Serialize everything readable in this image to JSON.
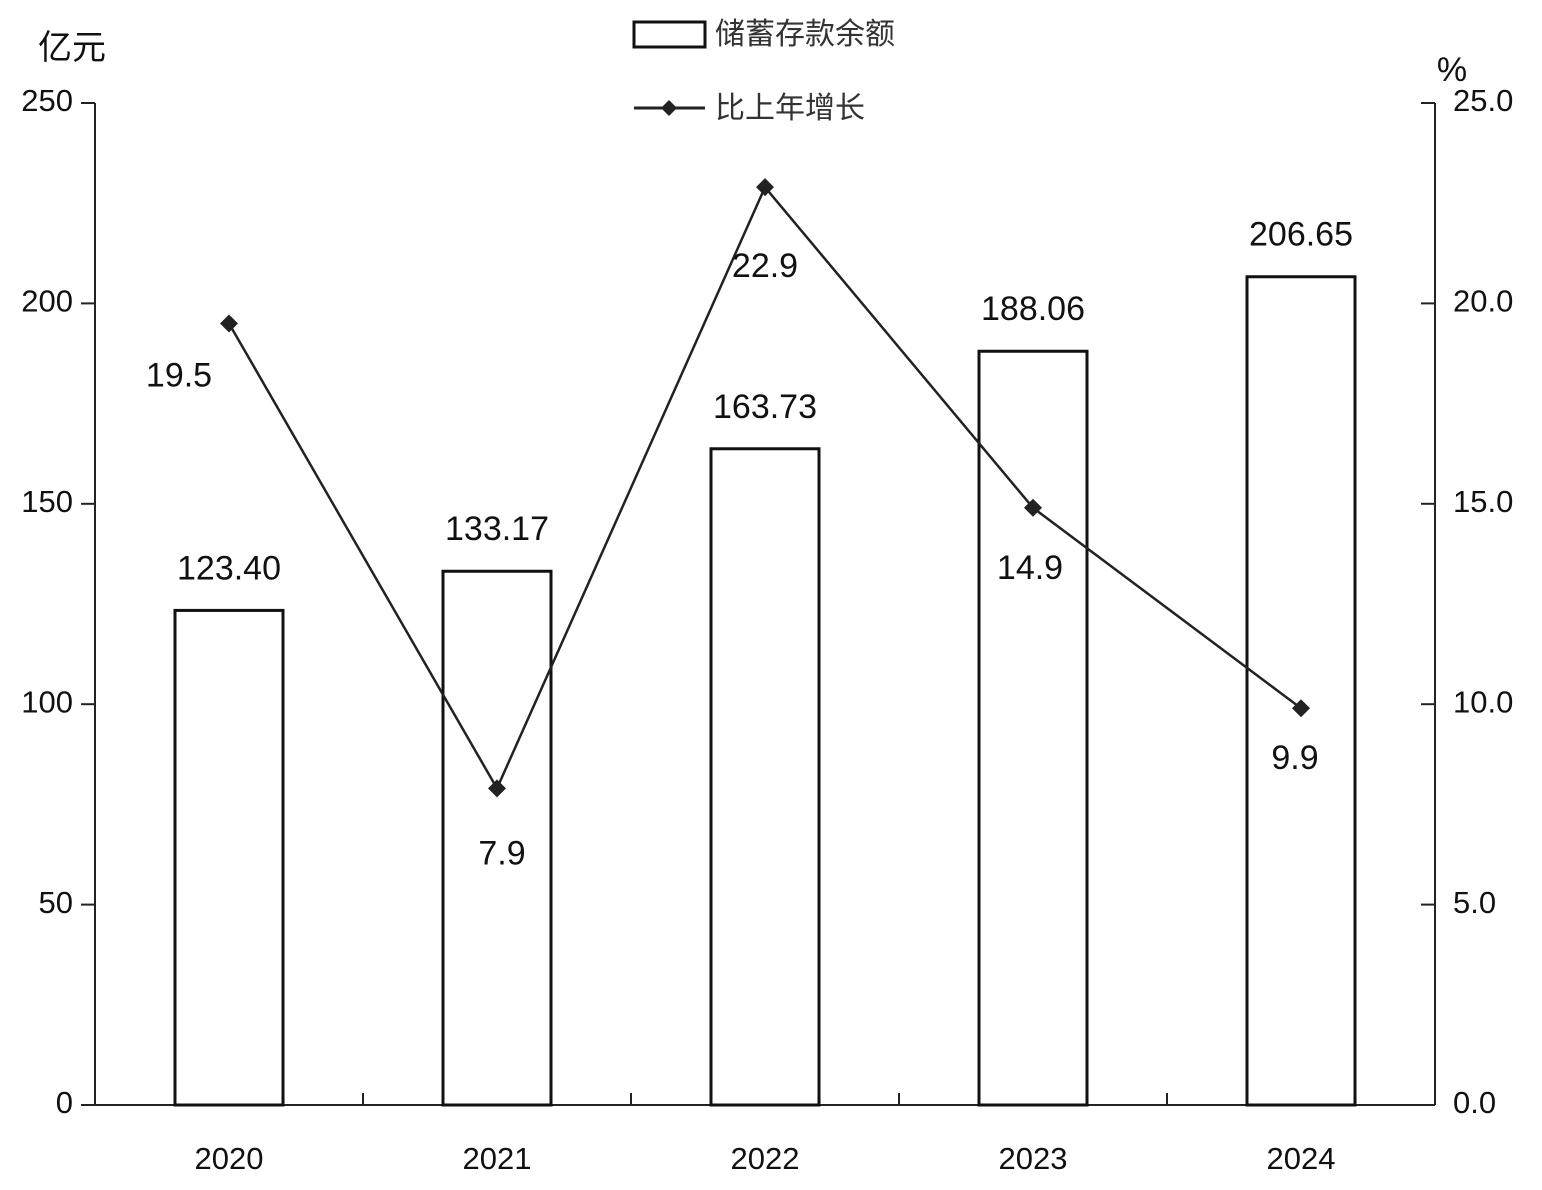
{
  "chart_data": {
    "type": "bar-line",
    "y_label": "亿元",
    "y2_label": "%",
    "categories": [
      "2020",
      "2021",
      "2022",
      "2023",
      "2024"
    ],
    "series": [
      {
        "name": "储蓄存款余额",
        "type": "bar",
        "color": "#ffffff",
        "stroke": "#111111",
        "values": [
          123.4,
          133.17,
          163.73,
          188.06,
          206.65
        ],
        "value_labels": [
          "123.40",
          "133.17",
          "163.73",
          "188.06",
          "206.65"
        ]
      },
      {
        "name": "比上年增长",
        "type": "line",
        "axis": "y2",
        "color": "#222222",
        "values": [
          19.5,
          7.9,
          22.9,
          14.9,
          9.9
        ]
      }
    ],
    "ylim": [
      0,
      250
    ],
    "yticks": [
      0,
      50,
      100,
      150,
      200,
      250
    ],
    "y2lim": [
      0,
      25
    ],
    "y2ticks": [
      {
        "value": 0,
        "label": "0.0"
      },
      {
        "value": 5,
        "label": "5.0"
      },
      {
        "value": 10,
        "label": "10.0"
      },
      {
        "value": 15,
        "label": "15.0"
      },
      {
        "value": 20,
        "label": "20.0"
      },
      {
        "value": 25,
        "label": "25.0"
      }
    ],
    "grid": false
  }
}
